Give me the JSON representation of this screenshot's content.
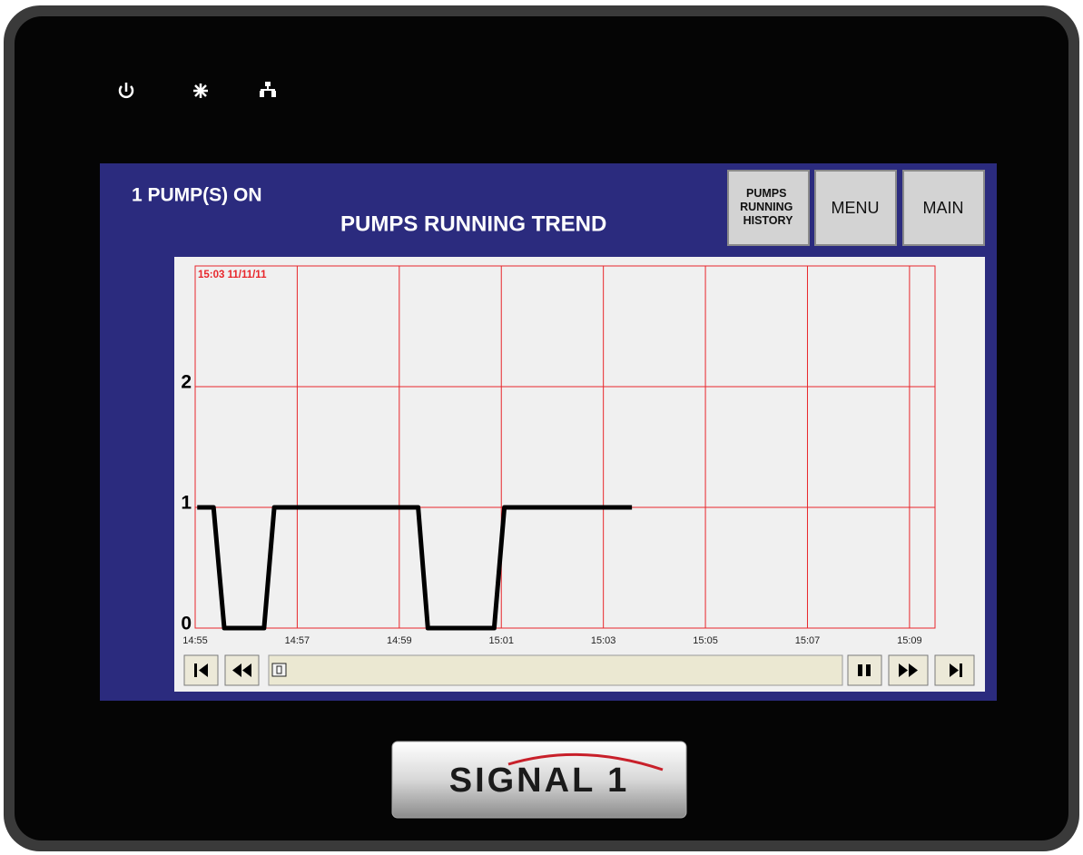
{
  "header": {
    "status": "1 PUMP(S) ON",
    "title": "PUMPS RUNNING TREND"
  },
  "buttons": [
    {
      "lines": [
        "PUMPS",
        "RUNNING",
        "HISTORY"
      ]
    },
    {
      "lines": [
        "MENU"
      ]
    },
    {
      "lines": [
        "MAIN"
      ]
    }
  ],
  "brand": "SIGNAL 1",
  "chart_data": {
    "type": "line",
    "annotation": "15:03 11/11/11",
    "x": [
      895.04,
      895.36,
      895.57,
      896.35,
      896.55,
      899.37,
      899.56,
      900.86,
      901.06,
      903.56
    ],
    "values": [
      1,
      1,
      0,
      0,
      1,
      1,
      0,
      0,
      1,
      1
    ],
    "color": "#000000",
    "grid_color": "#e8262b",
    "xlim": [
      895,
      909.5
    ],
    "xticks": [
      {
        "value": 895,
        "label": "14:55"
      },
      {
        "value": 897,
        "label": "14:57"
      },
      {
        "value": 899,
        "label": "14:59"
      },
      {
        "value": 901,
        "label": "15:01"
      },
      {
        "value": 903,
        "label": "15:03"
      },
      {
        "value": 905,
        "label": "15:05"
      },
      {
        "value": 907,
        "label": "15:07"
      },
      {
        "value": 909,
        "label": "15:09"
      }
    ],
    "ylim": [
      0,
      3
    ],
    "yticks": [
      0,
      1,
      2
    ],
    "grid": true
  }
}
